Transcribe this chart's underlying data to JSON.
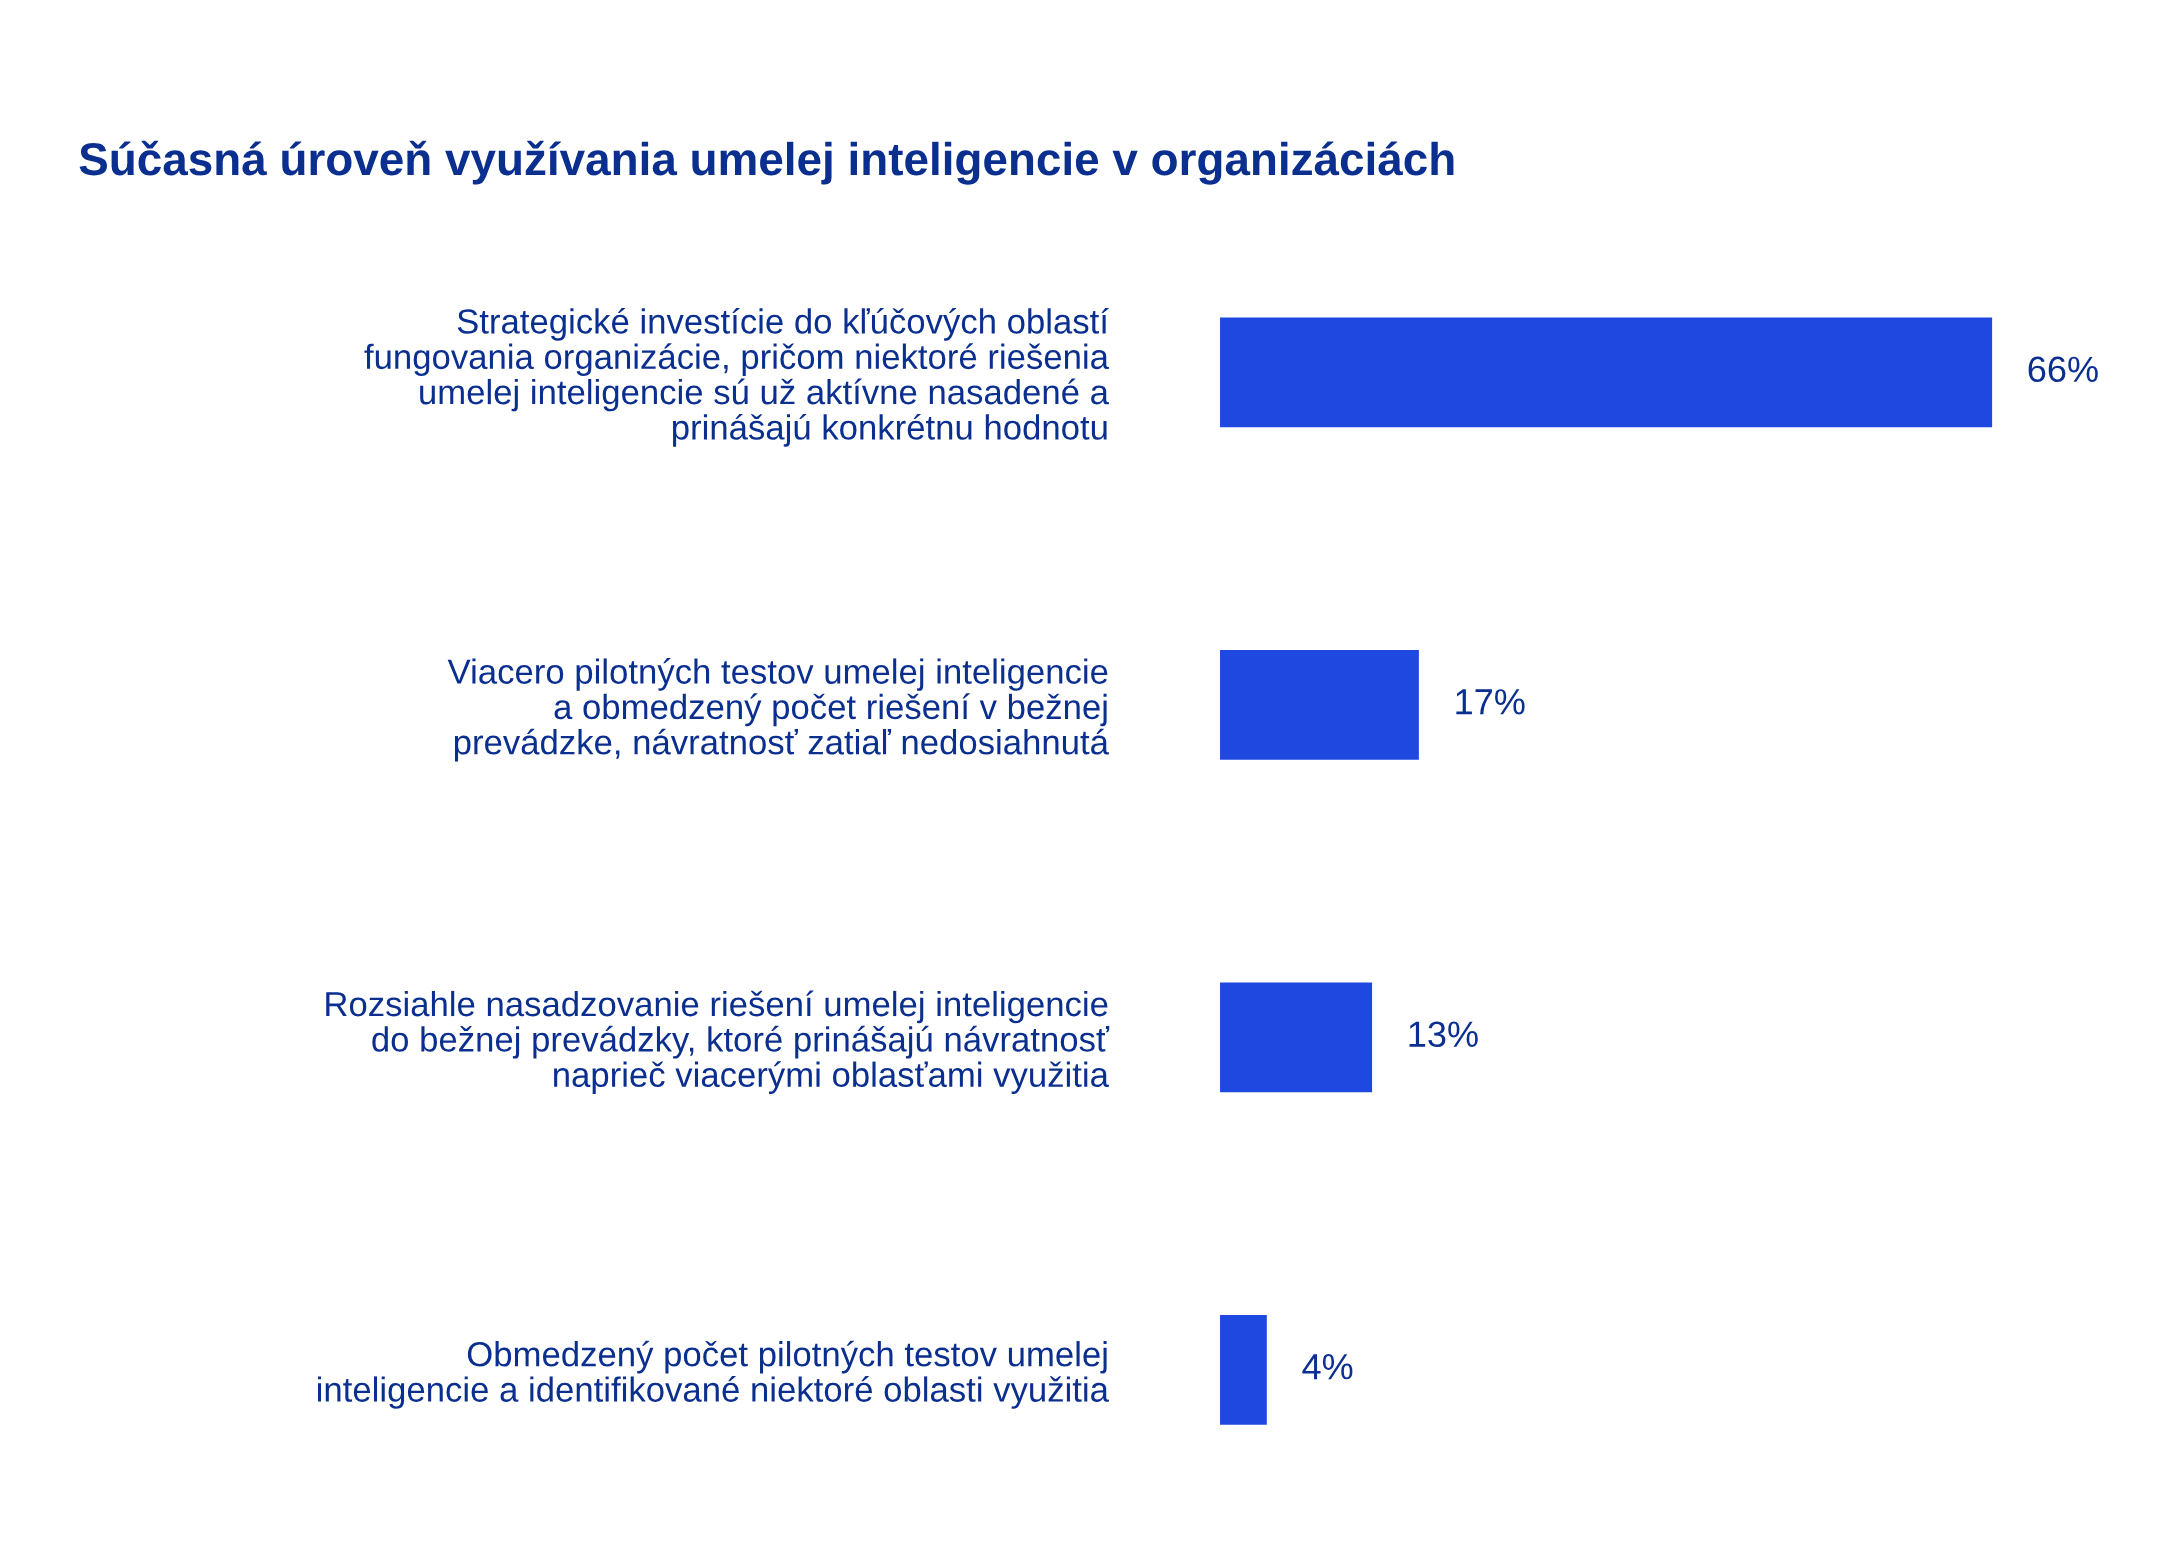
{
  "chart_data": {
    "type": "bar",
    "orientation": "horizontal",
    "title": "Súčasná úroveň využívania umelej inteligencie v organizáciách",
    "categories": [
      "Strategické investície do kľúčových oblastí\nfungovania organizácie, pričom niektoré riešenia\numelej inteligencie sú už aktívne nasadené a\nprinášajú konkrétnu hodnotu",
      "Viacero pilotných testov umelej inteligencie\na obmedzený počet riešení v bežnej\nprevádzke, návratnosť zatiaľ nedosiahnutá",
      "Rozsiahle nasadzovanie riešení umelej inteligencie\ndo bežnej prevádzky, ktoré prinášajú návratnosť\nnaprieč viacerými oblasťami využitia",
      "Obmedzený počet pilotných testov umelej\ninteligencie a identifikované niektoré oblasti využitia"
    ],
    "values": [
      66,
      17,
      13,
      4
    ],
    "value_labels": [
      "66%",
      "17%",
      "13%",
      "4%"
    ],
    "color": "#1f48e0",
    "grid": false,
    "legend": false
  }
}
